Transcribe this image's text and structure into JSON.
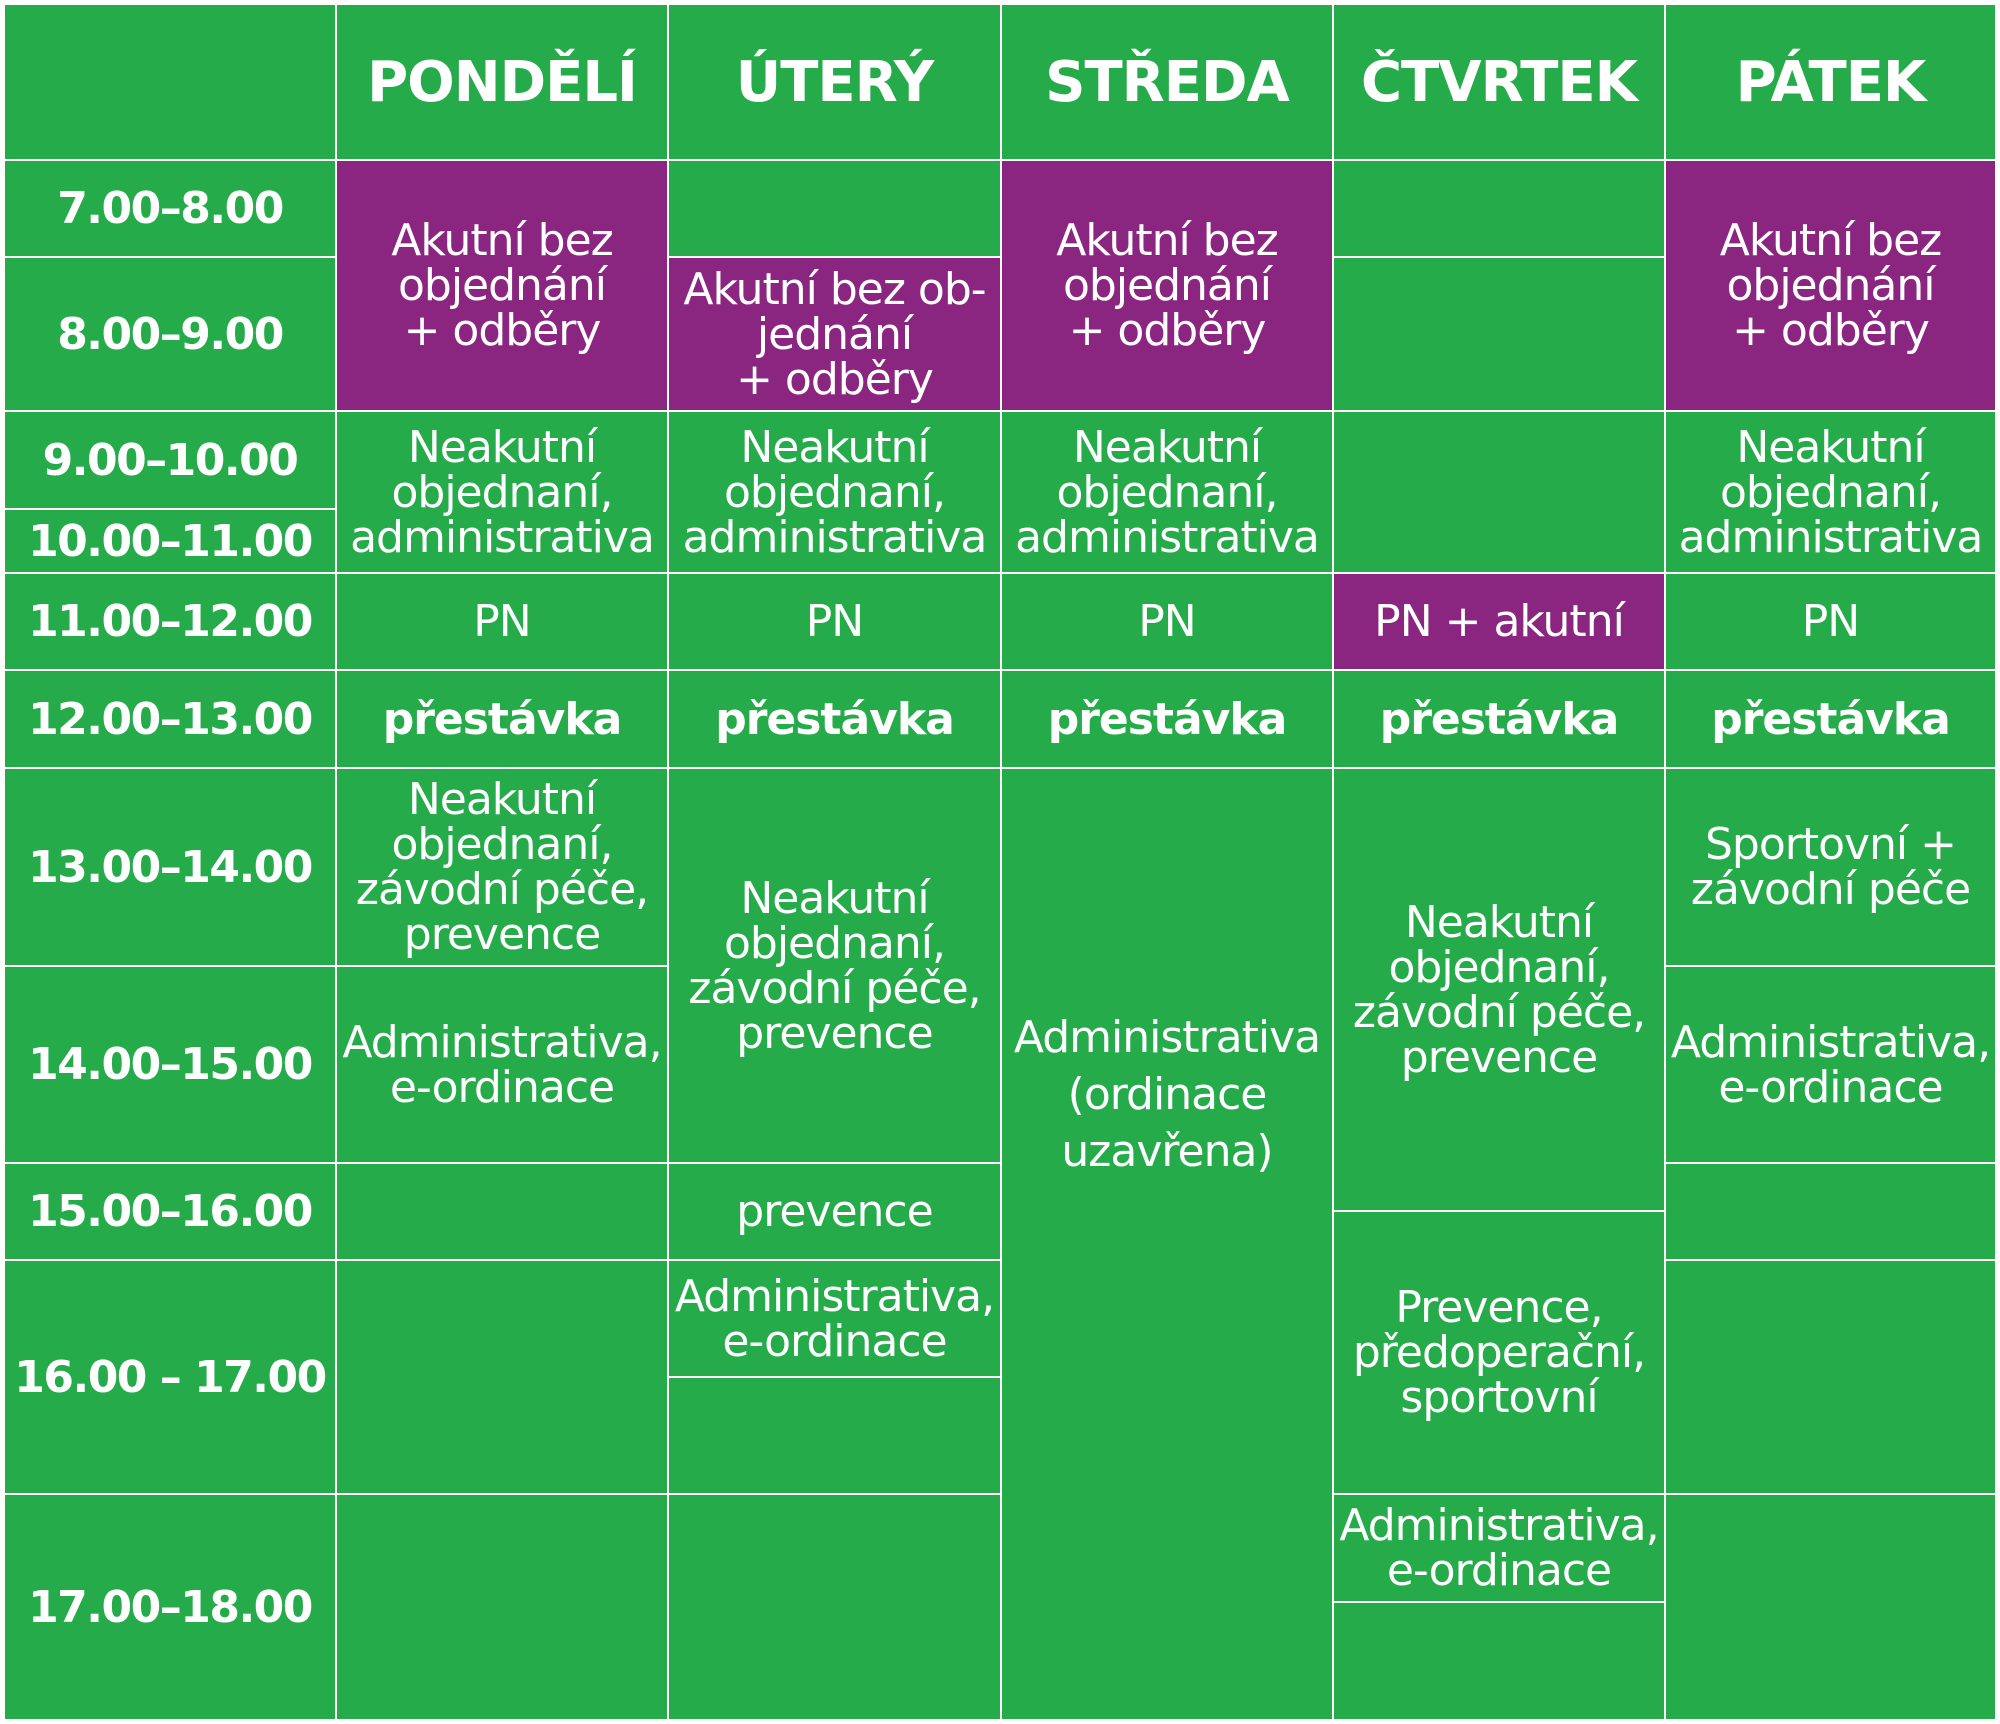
{
  "colors": {
    "green": "#26ab4b",
    "purple": "#8a2580",
    "grid_lines": "#ffffff"
  },
  "days": [
    "PONDĚLÍ",
    "ÚTERÝ",
    "STŘEDA",
    "ČTVRTEK",
    "PÁTEK"
  ],
  "times": [
    "7.00–8.00",
    "8.00–9.00",
    "9.00–10.00",
    "10.00–11.00",
    "11.00–12.00",
    "12.00–13.00",
    "13.00–14.00",
    "14.00–15.00",
    "15.00–16.00",
    "16.00 – 17.00",
    "17.00–18.00"
  ],
  "schedule": {
    "mon": {
      "akutni": "Akutní bez\nobjednání\n+ odběry",
      "neakutni": "Neakutní\nobjednaní,\nadministrativa",
      "pn": "PN",
      "prestavka": "přestávka",
      "neakutni_zavod": "Neakutní\nobjednaní,\nzávodní péče,\nprevence",
      "admin": "Administrativa,\ne-ordinace"
    },
    "tue": {
      "akutni": "Akutní bez ob-\njednání\n+ odběry",
      "neakutni": "Neakutní\nobjednaní,\nadministrativa",
      "pn": "PN",
      "prestavka": "přestávka",
      "neakutni_zavod": "Neakutní\nobjednaní,\nzávodní péče,\nprevence",
      "prevence": "prevence",
      "admin": "Administrativa,\ne-ordinace"
    },
    "wed": {
      "akutni": "Akutní bez\nobjednání\n+ odběry",
      "neakutni": "Neakutní\nobjednaní,\nadministrativa",
      "pn": "PN",
      "prestavka": "přestávka",
      "uzavreno": "Administrativa\n(ordinace\nuzavřena)"
    },
    "thu": {
      "pn_akutni": "PN + akutní",
      "prestavka": "přestávka",
      "neakutni_zavod": "Neakutní\nobjednaní,\nzávodní péče,\nprevence",
      "prevence_predop": "Prevence,\npředoperační,\nsportovní",
      "admin": "Administrativa,\ne-ordinace"
    },
    "fri": {
      "akutni": "Akutní bez\nobjednání\n+ odběry",
      "neakutni": "Neakutní\nobjednaní,\nadministrativa",
      "pn": "PN",
      "prestavka": "přestávka",
      "sportovni": "Sportovní +\nzávodní péče",
      "admin": "Administrativa,\ne-ordinace"
    }
  }
}
